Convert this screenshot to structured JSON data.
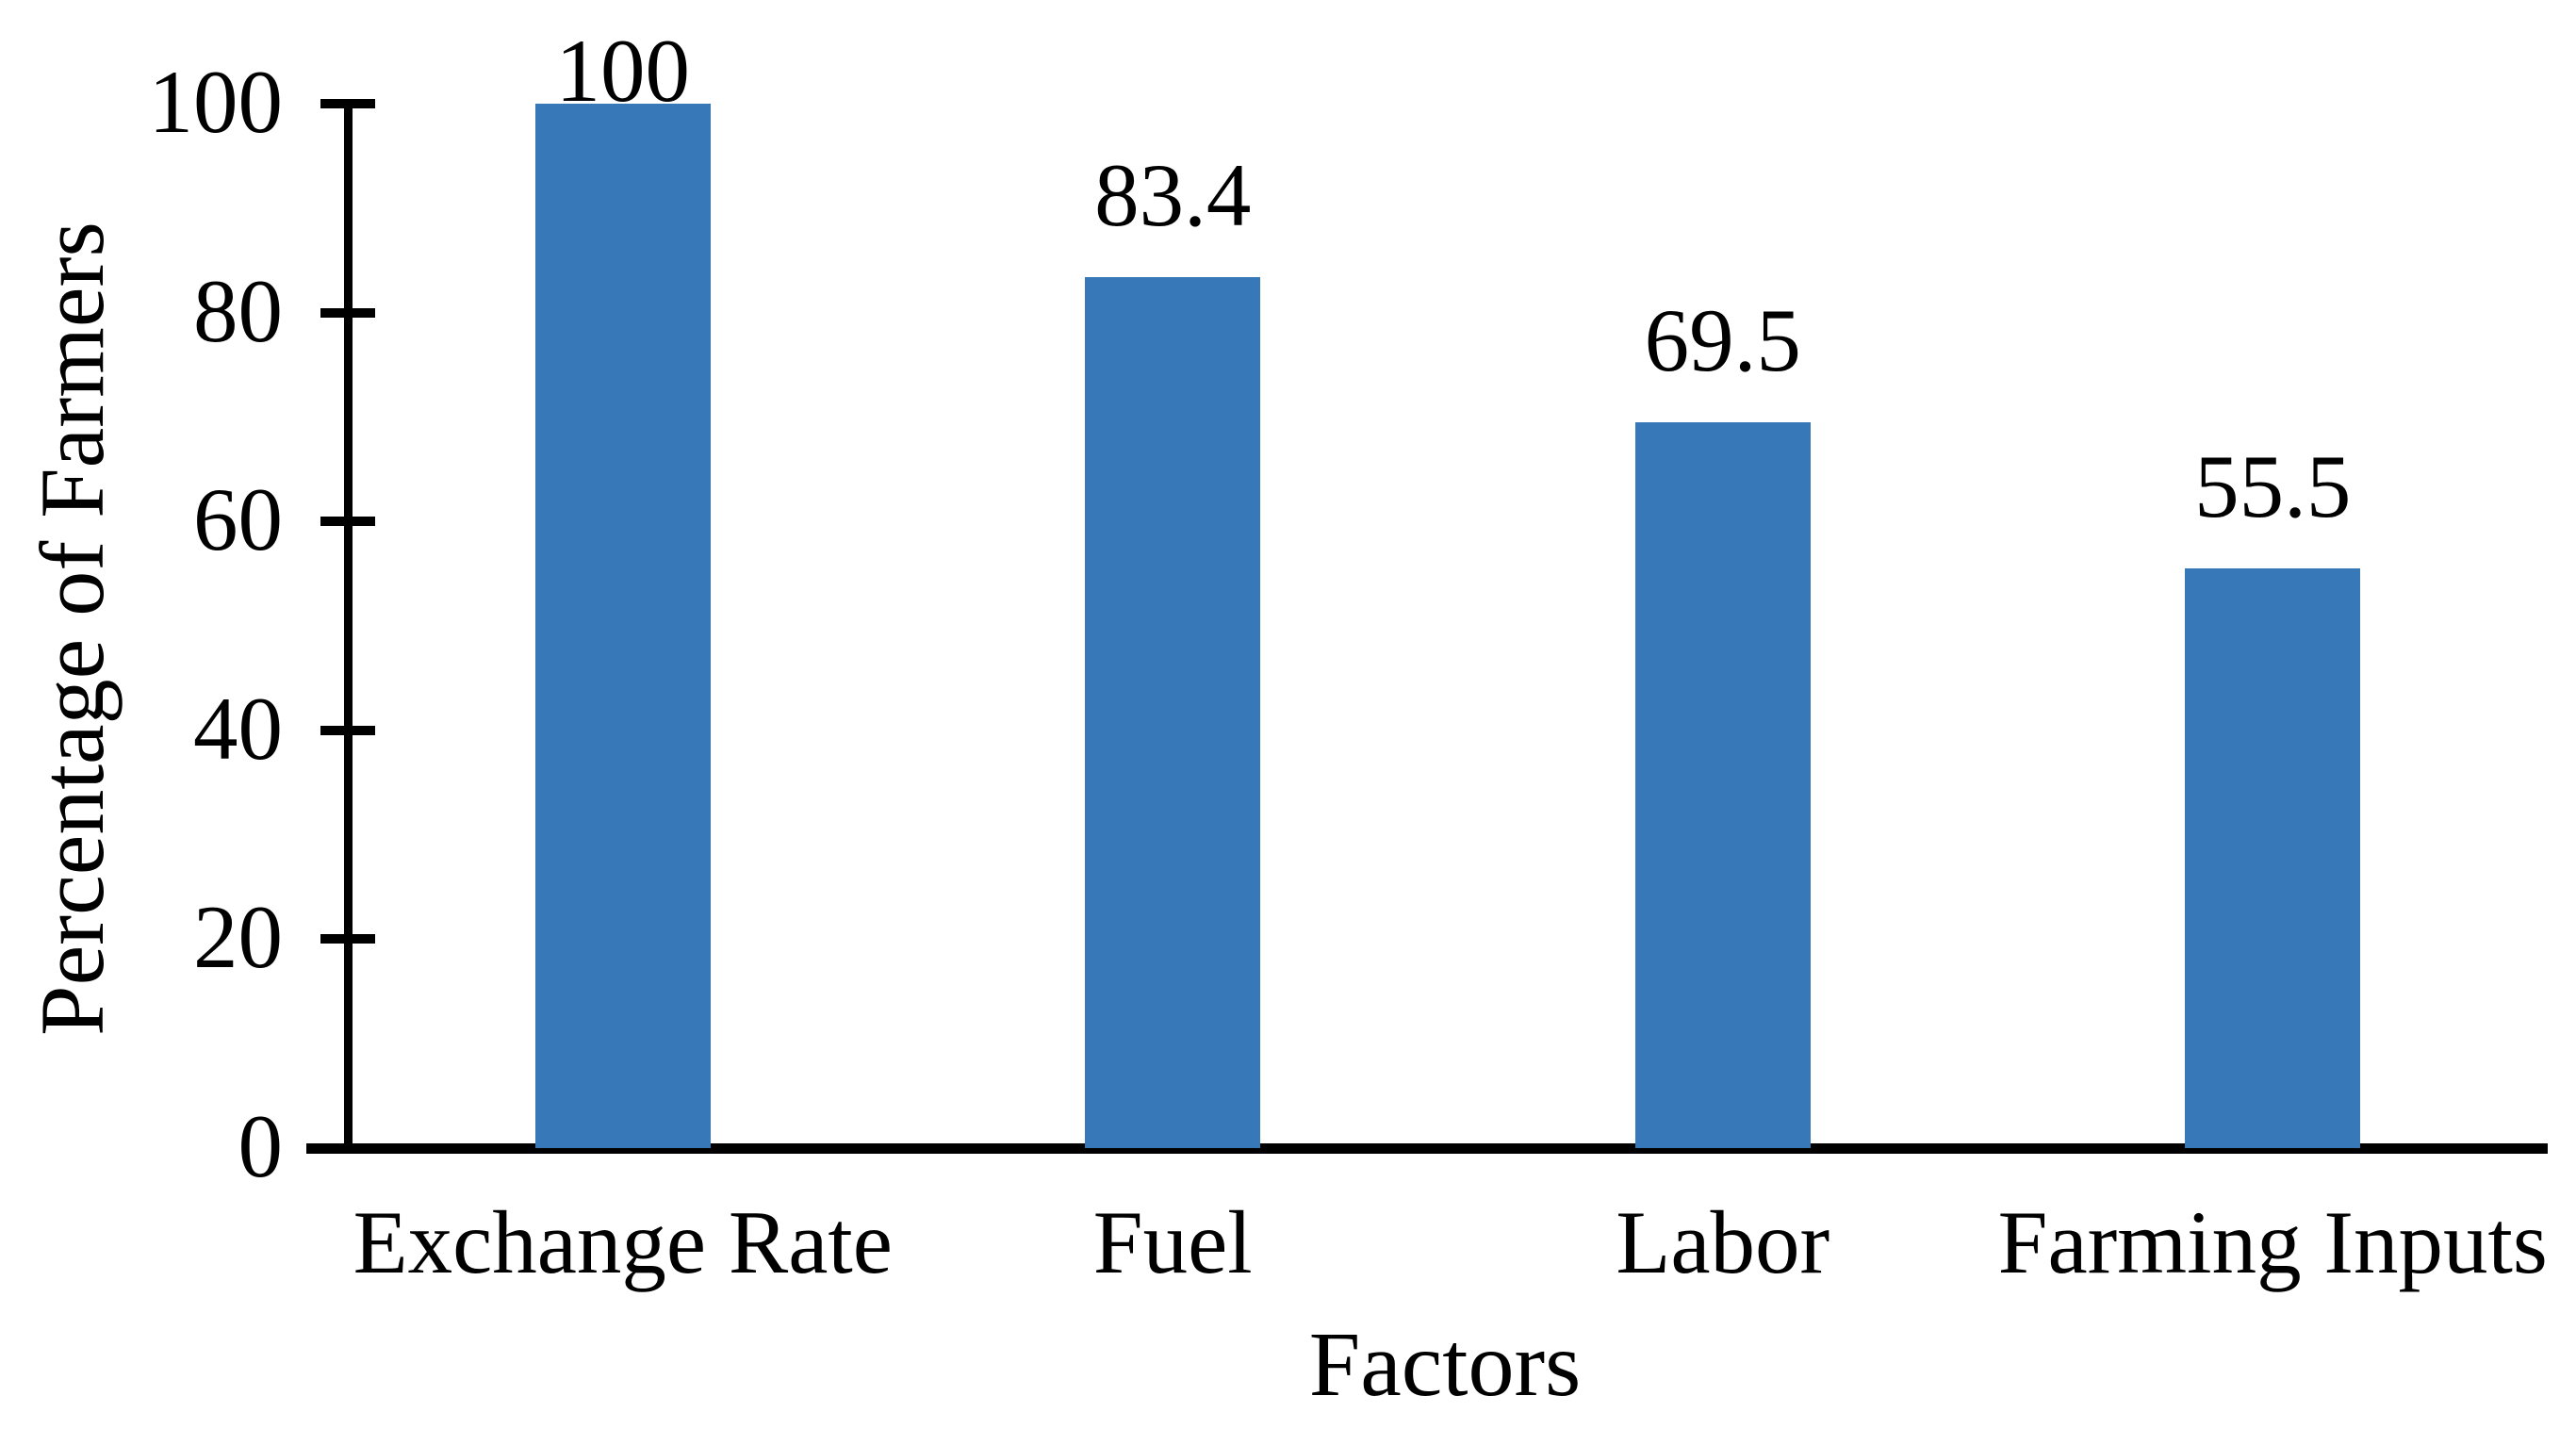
{
  "chart_data": {
    "type": "bar",
    "title": "",
    "categories": [
      "Exchange Rate",
      "Fuel",
      "Labor",
      "Farming Inputs"
    ],
    "values": [
      100,
      83.4,
      69.5,
      55.5
    ],
    "value_labels": [
      "100",
      "83.4",
      "69.5",
      "55.5"
    ],
    "xlabel": "Factors",
    "ylabel": "Percentage of Farmers",
    "yticks": [
      0,
      20,
      40,
      60,
      80,
      100
    ],
    "ytick_labels": [
      "0",
      "20",
      "40",
      "60",
      "80",
      "100"
    ],
    "ylim": [
      0,
      100
    ],
    "grid": false,
    "legend": "none",
    "bar_color": "#3778B8",
    "axis_color": "#000000",
    "text_color": "#000000",
    "background_color": "#ffffff"
  }
}
